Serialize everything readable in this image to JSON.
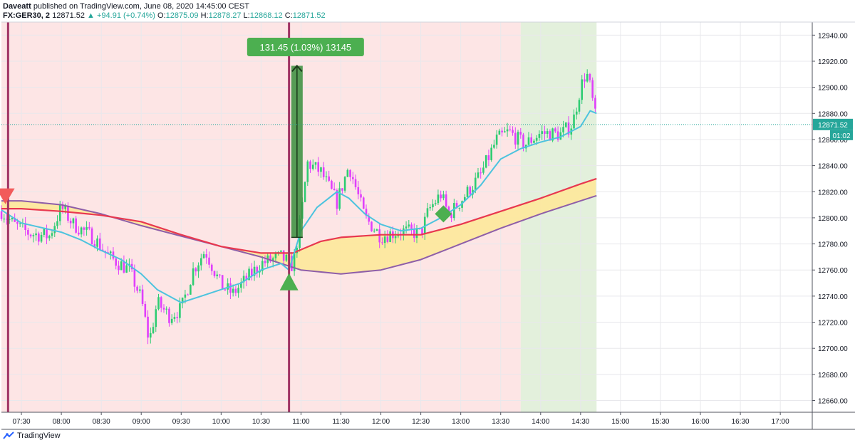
{
  "header": {
    "author": "Daveatt",
    "published": "published on TradingView.com, June 08, 2020 14:45:00 CEST",
    "symbol": "FX:GER30, 2",
    "last": "12871.52",
    "change": "+94.91 (+0.74%)",
    "o_label": "O:",
    "o_value": "12875.09",
    "h_label": "H:",
    "h_value": "12878.27",
    "l_label": "L:",
    "l_value": "12868.12",
    "c_label": "C:",
    "c_value": "12871.52"
  },
  "footer": {
    "brand": "TradingView"
  },
  "colors": {
    "pink_bg": "#fde5e5",
    "green_bg": "#e3f0dc",
    "up": "#2ecc71",
    "down": "#e040fb",
    "ema_fast": "#4cc3de",
    "ema_red": "#e8384f",
    "ema_purple": "#8e5ea8",
    "cloud": "#fde89a",
    "vline": "#a03464",
    "measure": "#4caf50",
    "price_line": "#26a69a"
  },
  "chart_data": {
    "type": "candlestick",
    "x_ticks": [
      "07:30",
      "08:00",
      "08:30",
      "09:00",
      "09:30",
      "10:00",
      "10:30",
      "11:00",
      "11:30",
      "12:00",
      "12:30",
      "13:00",
      "13:30",
      "14:00",
      "14:30",
      "15:00",
      "15:30",
      "16:00",
      "16:30",
      "17:00"
    ],
    "y_ticks": [
      "12660.00",
      "12680.00",
      "12700.00",
      "12720.00",
      "12740.00",
      "12760.00",
      "12780.00",
      "12800.00",
      "12820.00",
      "12840.00",
      "12860.00",
      "12880.00",
      "12900.00",
      "12920.00",
      "12940.00"
    ],
    "ylim": [
      12651,
      12950
    ],
    "x_start": "07:15",
    "x_end": "17:24",
    "session_break_times": [
      "07:20",
      "10:51"
    ],
    "green_session": [
      "13:45",
      "14:42"
    ],
    "last_price": "12871.52",
    "countdown": "01:02",
    "measure_label": "131.45 (1.03%) 13145",
    "measure_from": 12785,
    "measure_to": 12916.5,
    "measure_time": "10:57",
    "sell_signal": {
      "time": "07:18",
      "price": 12816
    },
    "buy_signal": {
      "time": "10:51",
      "price": 12751
    },
    "diamond_signal": {
      "time": "12:47",
      "price": 12803
    },
    "ema_fast": [
      [
        7.25,
        12806
      ],
      [
        7.5,
        12796
      ],
      [
        8.0,
        12789
      ],
      [
        8.25,
        12783
      ],
      [
        8.5,
        12775
      ],
      [
        8.75,
        12768
      ],
      [
        9.0,
        12757
      ],
      [
        9.2,
        12745
      ],
      [
        9.5,
        12735
      ],
      [
        9.75,
        12740
      ],
      [
        10.0,
        12745
      ],
      [
        10.25,
        12750
      ],
      [
        10.5,
        12760
      ],
      [
        10.75,
        12765
      ],
      [
        10.85,
        12760
      ],
      [
        11.0,
        12790
      ],
      [
        11.2,
        12808
      ],
      [
        11.45,
        12820
      ],
      [
        11.6,
        12815
      ],
      [
        11.8,
        12803
      ],
      [
        12.0,
        12795
      ],
      [
        12.25,
        12790
      ],
      [
        12.5,
        12792
      ],
      [
        12.75,
        12800
      ],
      [
        13.0,
        12810
      ],
      [
        13.25,
        12825
      ],
      [
        13.5,
        12845
      ],
      [
        13.75,
        12853
      ],
      [
        14.0,
        12858
      ],
      [
        14.25,
        12862
      ],
      [
        14.5,
        12870
      ],
      [
        14.62,
        12882
      ],
      [
        14.7,
        12880
      ]
    ],
    "ema_red": [
      [
        7.25,
        12807
      ],
      [
        7.5,
        12807
      ],
      [
        8.0,
        12805
      ],
      [
        8.5,
        12802
      ],
      [
        9.0,
        12797
      ],
      [
        9.5,
        12787
      ],
      [
        10.0,
        12778
      ],
      [
        10.5,
        12773
      ],
      [
        10.9,
        12773
      ],
      [
        11.25,
        12782
      ],
      [
        11.5,
        12785
      ],
      [
        12.0,
        12787
      ],
      [
        12.5,
        12787
      ],
      [
        13.0,
        12795
      ],
      [
        13.5,
        12805
      ],
      [
        14.0,
        12815
      ],
      [
        14.5,
        12826
      ],
      [
        14.7,
        12830
      ]
    ],
    "ema_purple": [
      [
        7.25,
        12813
      ],
      [
        7.5,
        12813
      ],
      [
        8.0,
        12810
      ],
      [
        8.5,
        12803
      ],
      [
        9.0,
        12794
      ],
      [
        9.5,
        12786
      ],
      [
        10.0,
        12778
      ],
      [
        10.5,
        12770
      ],
      [
        11.0,
        12760
      ],
      [
        11.5,
        12757
      ],
      [
        12.0,
        12760
      ],
      [
        12.5,
        12768
      ],
      [
        13.0,
        12780
      ],
      [
        13.5,
        12792
      ],
      [
        14.0,
        12803
      ],
      [
        14.5,
        12813
      ],
      [
        14.7,
        12817
      ]
    ],
    "price_path": [
      [
        7.25,
        12805
      ],
      [
        7.4,
        12795
      ],
      [
        7.6,
        12788
      ],
      [
        7.85,
        12786
      ],
      [
        8.0,
        12808
      ],
      [
        8.15,
        12795
      ],
      [
        8.4,
        12785
      ],
      [
        8.6,
        12770
      ],
      [
        8.85,
        12760
      ],
      [
        9.0,
        12738
      ],
      [
        9.1,
        12705
      ],
      [
        9.2,
        12735
      ],
      [
        9.35,
        12725
      ],
      [
        9.5,
        12730
      ],
      [
        9.65,
        12760
      ],
      [
        9.8,
        12775
      ],
      [
        10.0,
        12748
      ],
      [
        10.15,
        12742
      ],
      [
        10.3,
        12752
      ],
      [
        10.5,
        12765
      ],
      [
        10.75,
        12770
      ],
      [
        10.9,
        12763
      ],
      [
        11.0,
        12800
      ],
      [
        11.08,
        12842
      ],
      [
        11.25,
        12835
      ],
      [
        11.45,
        12812
      ],
      [
        11.6,
        12840
      ],
      [
        11.8,
        12800
      ],
      [
        12.0,
        12786
      ],
      [
        12.25,
        12790
      ],
      [
        12.5,
        12788
      ],
      [
        12.6,
        12806
      ],
      [
        12.75,
        12818
      ],
      [
        12.85,
        12802
      ],
      [
        13.0,
        12813
      ],
      [
        13.25,
        12833
      ],
      [
        13.45,
        12860
      ],
      [
        13.6,
        12866
      ],
      [
        13.8,
        12856
      ],
      [
        14.0,
        12865
      ],
      [
        14.25,
        12864
      ],
      [
        14.4,
        12872
      ],
      [
        14.5,
        12900
      ],
      [
        14.57,
        12912
      ],
      [
        14.62,
        12900
      ],
      [
        14.7,
        12872
      ]
    ]
  }
}
